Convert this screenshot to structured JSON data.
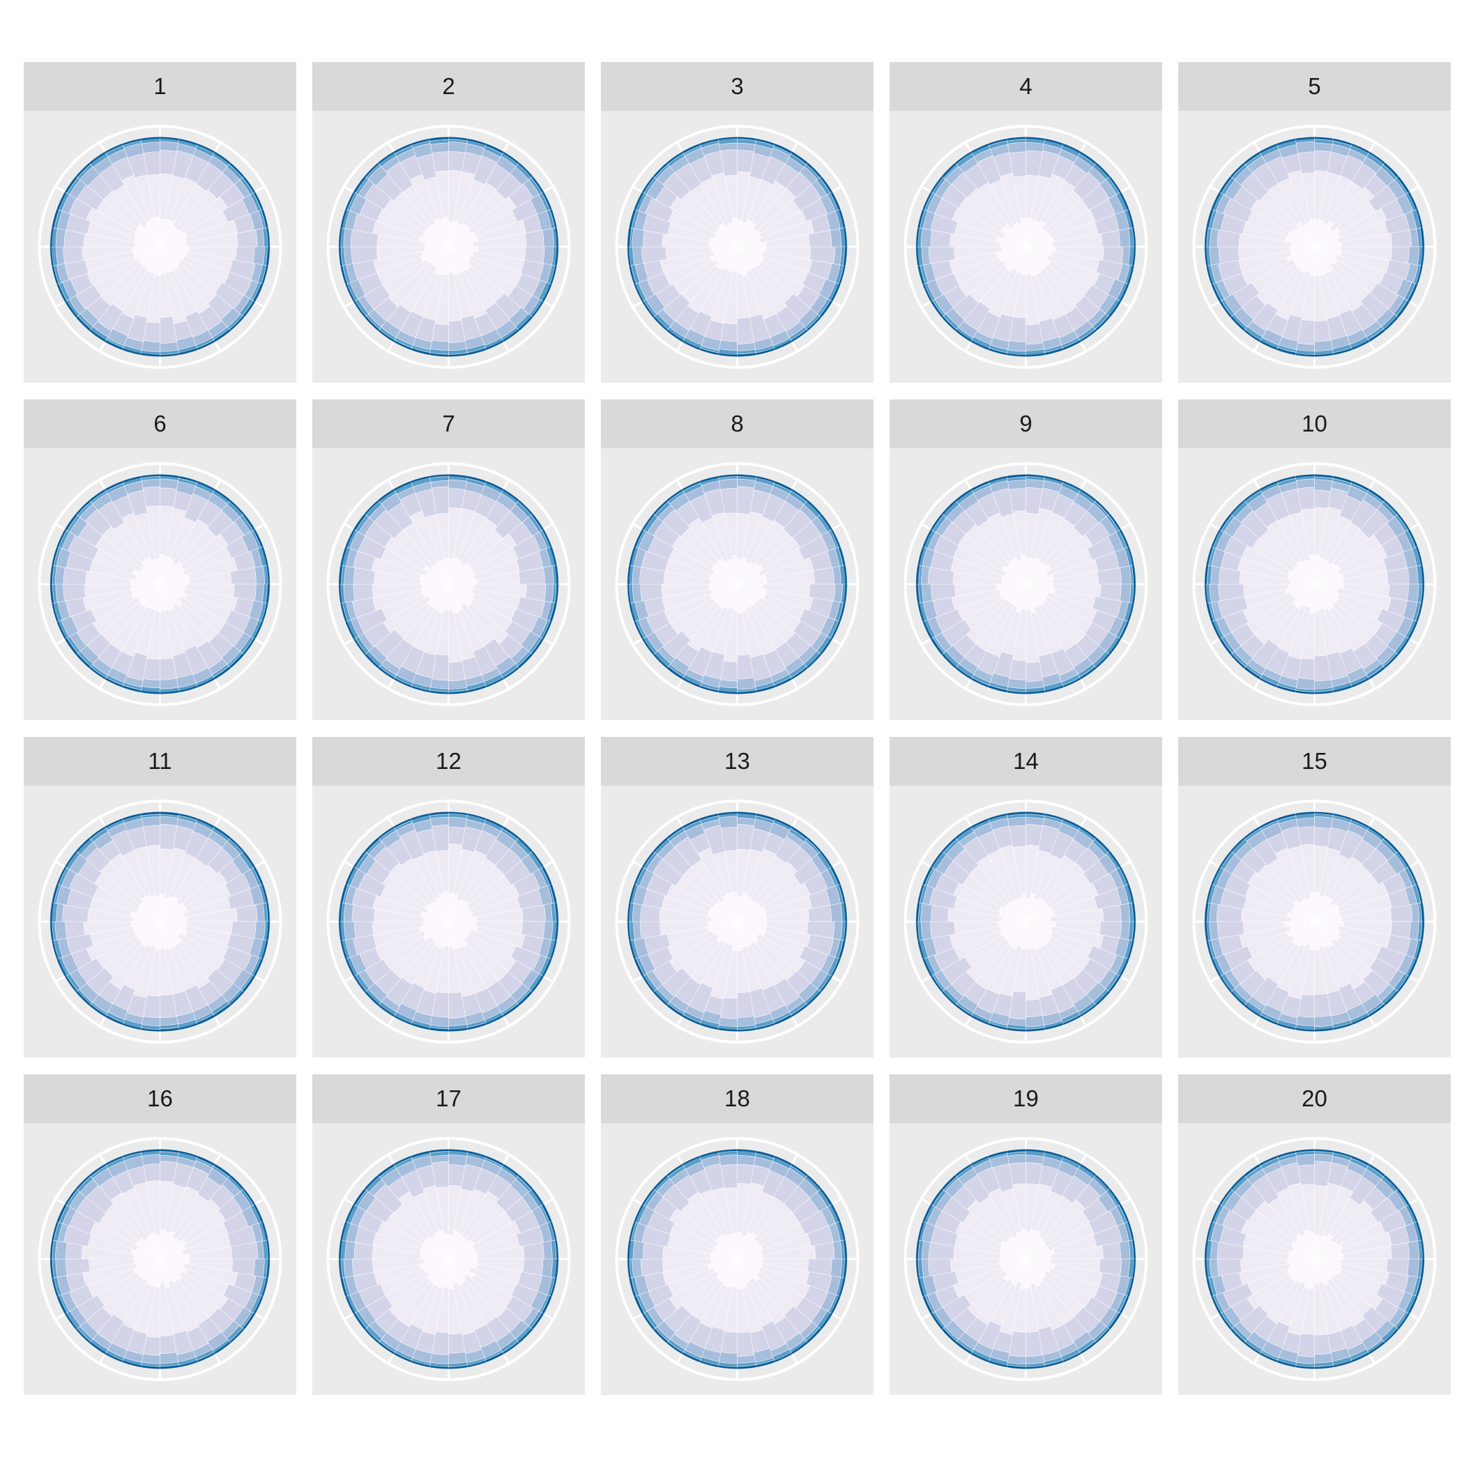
{
  "chart_data": {
    "type": "polar-stacked-bar",
    "title": "",
    "description_axis": "stacked proportions by angular category, faceted small multiples",
    "n_angular_categories": 36,
    "n_stack_levels": 6,
    "stack_cumulative_mean": [
      0.06,
      0.46,
      0.76,
      0.9,
      0.96,
      1.0
    ],
    "radial_ylim": [
      0,
      1.1
    ],
    "stack_colors": [
      "#fbf7fc",
      "#efebf5",
      "#d3d4e8",
      "#a6bddb",
      "#5a9ec9",
      "#2477b3",
      "#0c5a93"
    ],
    "panel_background": "#ebebeb",
    "strip_background": "#d9d9d9",
    "grid_color": "#ffffff",
    "facets": [
      {
        "label": "1"
      },
      {
        "label": "2"
      },
      {
        "label": "3"
      },
      {
        "label": "4"
      },
      {
        "label": "5"
      },
      {
        "label": "6"
      },
      {
        "label": "7"
      },
      {
        "label": "8"
      },
      {
        "label": "9"
      },
      {
        "label": "10"
      },
      {
        "label": "11"
      },
      {
        "label": "12"
      },
      {
        "label": "13"
      },
      {
        "label": "14"
      },
      {
        "label": "15"
      },
      {
        "label": "16"
      },
      {
        "label": "17"
      },
      {
        "label": "18"
      },
      {
        "label": "19"
      },
      {
        "label": "20"
      }
    ]
  }
}
